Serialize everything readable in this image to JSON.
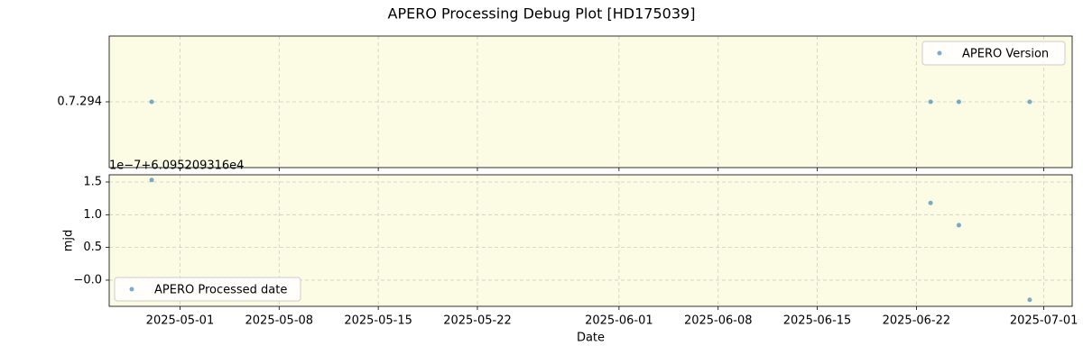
{
  "title": "APERO Processing Debug Plot [HD175039]",
  "chart_data": [
    {
      "type": "scatter",
      "background": "#fcfbe3",
      "grid": true,
      "legend": "upper right",
      "y_categories": [
        "0.7.294"
      ],
      "x": [
        "2025-04-29",
        "2025-06-23",
        "2025-06-25",
        "2025-06-30"
      ],
      "series": [
        {
          "name": "APERO Version",
          "color": "#1f77b4",
          "values": [
            "0.7.294",
            "0.7.294",
            "0.7.294",
            "0.7.294"
          ]
        }
      ]
    },
    {
      "type": "scatter",
      "background": "#fcfbe3",
      "grid": true,
      "legend": "lower left",
      "ylabel": "mjd",
      "xlabel": "Date",
      "offset_label": "1e−7+6.095209316e4",
      "x": [
        "2025-04-29",
        "2025-06-23",
        "2025-06-25",
        "2025-06-30"
      ],
      "xlim": [
        "2025-04-26",
        "2025-07-03"
      ],
      "xticks": [
        "2025-05-01",
        "2025-05-08",
        "2025-05-15",
        "2025-05-22",
        "2025-06-01",
        "2025-06-08",
        "2025-06-15",
        "2025-06-22",
        "2025-07-01"
      ],
      "ylim": [
        -0.4,
        1.61
      ],
      "yticks": [
        {
          "value": 0,
          "label": "−0.0"
        },
        {
          "value": 0.5,
          "label": "0.5"
        },
        {
          "value": 1,
          "label": "1.0"
        },
        {
          "value": 1.5,
          "label": "1.5"
        }
      ],
      "series": [
        {
          "name": "APERO Processed date",
          "color": "#1f77b4",
          "values": [
            1.53,
            1.18,
            0.84,
            -0.3
          ]
        }
      ]
    }
  ]
}
